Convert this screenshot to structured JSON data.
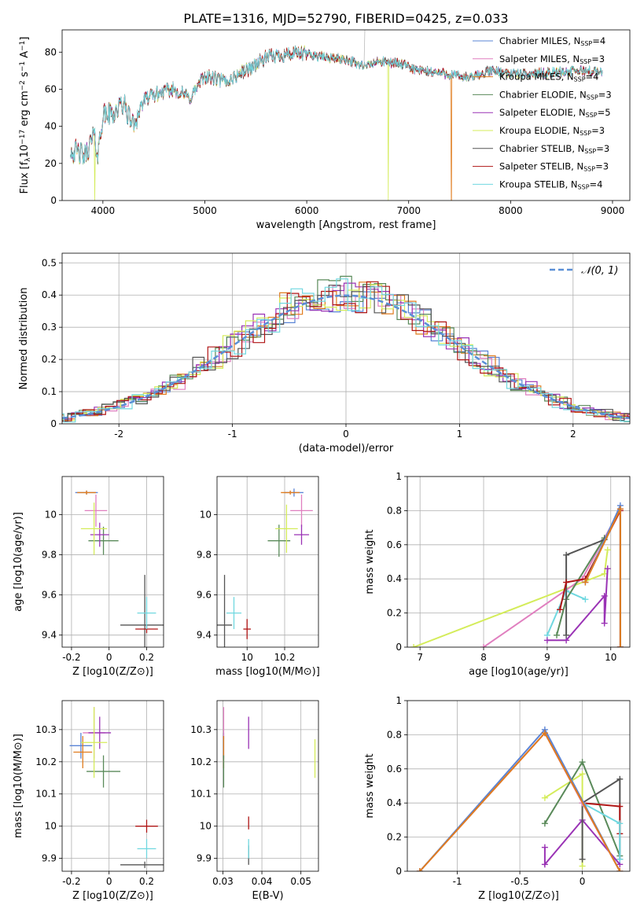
{
  "figure": {
    "title": "PLATE=1316, MJD=52790, FIBERID=0425, z=0.033"
  },
  "models": [
    {
      "name": "Chabrier MILES",
      "n_ssp": "4",
      "color": "#5a84d6"
    },
    {
      "name": "Salpeter MILES",
      "n_ssp": "3",
      "color": "#e07fbf"
    },
    {
      "name": "Kroupa MILES",
      "n_ssp": "4",
      "color": "#e07c1e"
    },
    {
      "name": "Chabrier ELODIE",
      "n_ssp": "3",
      "color": "#5a8a5a"
    },
    {
      "name": "Salpeter ELODIE",
      "n_ssp": "5",
      "color": "#9a33b5"
    },
    {
      "name": "Kroupa ELODIE",
      "n_ssp": "3",
      "color": "#d4ec5a"
    },
    {
      "name": "Chabrier STELIB",
      "n_ssp": "3",
      "color": "#555555"
    },
    {
      "name": "Salpeter STELIB",
      "n_ssp": "3",
      "color": "#b01515"
    },
    {
      "name": "Kroupa STELIB",
      "n_ssp": "4",
      "color": "#70d8e0"
    }
  ],
  "chart_data": [
    {
      "id": "spectrum",
      "type": "line",
      "xlabel": "wavelength [Angstrom, rest frame]",
      "ylabel": "Flux [f_λ 10^-17 erg cm^-2 s^-1 A^-1]",
      "xlim": [
        3600,
        9170
      ],
      "ylim": [
        0,
        92
      ],
      "xticks": [
        4000,
        5000,
        6000,
        7000,
        8000,
        9000
      ],
      "yticks": [
        0,
        20,
        40,
        60,
        80
      ],
      "legend": "top-right",
      "spectrum_profile": [
        [
          3680,
          31
        ],
        [
          3750,
          30
        ],
        [
          3820,
          28
        ],
        [
          3900,
          37
        ],
        [
          3950,
          25
        ],
        [
          4000,
          46
        ],
        [
          4100,
          47
        ],
        [
          4200,
          52
        ],
        [
          4300,
          41
        ],
        [
          4400,
          54
        ],
        [
          4500,
          57
        ],
        [
          4700,
          60
        ],
        [
          4850,
          55
        ],
        [
          5000,
          67
        ],
        [
          5200,
          64
        ],
        [
          5400,
          70
        ],
        [
          5600,
          77
        ],
        [
          5800,
          79
        ],
        [
          6000,
          79
        ],
        [
          6200,
          77
        ],
        [
          6400,
          76
        ],
        [
          6562,
          72
        ],
        [
          6700,
          75
        ],
        [
          6900,
          74
        ],
        [
          7100,
          70
        ],
        [
          7300,
          69
        ],
        [
          7600,
          66
        ],
        [
          7800,
          70
        ],
        [
          8100,
          68
        ],
        [
          8400,
          69
        ],
        [
          8700,
          70
        ],
        [
          8900,
          69
        ]
      ],
      "dropouts": [
        {
          "model": "Kroupa ELODIE",
          "wavelengths": [
            3920,
            6800
          ]
        },
        {
          "model": "Kroupa MILES",
          "wavelengths": [
            7420
          ]
        }
      ],
      "emission_spike": {
        "wavelength": 6562,
        "flux": 92
      }
    },
    {
      "id": "residuals",
      "type": "histogram",
      "xlabel": "(data-model)/error",
      "ylabel": "Normed distribution",
      "xlim": [
        -2.5,
        2.5
      ],
      "ylim": [
        0,
        0.53
      ],
      "xticks": [
        -2,
        -1,
        0,
        1,
        2
      ],
      "yticks": [
        0.0,
        0.1,
        0.2,
        0.3,
        0.4,
        0.5
      ],
      "bin_width": 0.1,
      "reference_curve": {
        "label": "𝒩(0, 1)",
        "mean": 0,
        "sigma": 1
      },
      "legend": "top-right"
    },
    {
      "id": "age_vs_Z",
      "type": "scatter",
      "xlabel": "Z [log10(Z/Z⊙)]",
      "ylabel": "age [log10(age/yr)]",
      "xlim": [
        -0.25,
        0.29
      ],
      "ylim": [
        9.34,
        10.19
      ],
      "xticks": [
        -0.2,
        0.0,
        0.2
      ],
      "yticks": [
        9.4,
        9.6,
        9.8,
        10.0
      ],
      "points": [
        {
          "model": "Chabrier MILES",
          "x": -0.12,
          "y": 10.11,
          "xerr": 0.06,
          "yerr": 0.01
        },
        {
          "model": "Salpeter MILES",
          "x": -0.07,
          "y": 10.02,
          "xerr": 0.06,
          "yerr": 0.08
        },
        {
          "model": "Kroupa MILES",
          "x": -0.12,
          "y": 10.11,
          "xerr": 0.05,
          "yerr": 0.01
        },
        {
          "model": "Chabrier ELODIE",
          "x": -0.03,
          "y": 9.87,
          "xerr": 0.08,
          "yerr": 0.07
        },
        {
          "model": "Salpeter ELODIE",
          "x": -0.05,
          "y": 9.9,
          "xerr": 0.05,
          "yerr": 0.06
        },
        {
          "model": "Kroupa ELODIE",
          "x": -0.08,
          "y": 9.93,
          "xerr": 0.07,
          "yerr": 0.13
        },
        {
          "model": "Chabrier STELIB",
          "x": 0.19,
          "y": 9.45,
          "xerr": 0.13,
          "yerr": 0.25
        },
        {
          "model": "Salpeter STELIB",
          "x": 0.2,
          "y": 9.43,
          "xerr": 0.06,
          "yerr": 0.02
        },
        {
          "model": "Kroupa STELIB",
          "x": 0.2,
          "y": 9.51,
          "xerr": 0.05,
          "yerr": 0.08
        }
      ]
    },
    {
      "id": "age_vs_mass",
      "type": "scatter",
      "xlabel": "mass [log10(M/M⊙)]",
      "ylabel": "",
      "xlim": [
        9.84,
        10.38
      ],
      "ylim": [
        9.34,
        10.19
      ],
      "xticks": [
        10.0,
        10.2
      ],
      "yticks": [
        9.4,
        9.6,
        9.8,
        10.0
      ],
      "points": [
        {
          "model": "Chabrier MILES",
          "x": 10.25,
          "y": 10.11,
          "xerr": 0.05,
          "yerr": 0.02
        },
        {
          "model": "Salpeter MILES",
          "x": 10.29,
          "y": 10.02,
          "xerr": 0.06,
          "yerr": 0.08
        },
        {
          "model": "Kroupa MILES",
          "x": 10.23,
          "y": 10.11,
          "xerr": 0.05,
          "yerr": 0.01
        },
        {
          "model": "Chabrier ELODIE",
          "x": 10.17,
          "y": 9.87,
          "xerr": 0.06,
          "yerr": 0.08
        },
        {
          "model": "Salpeter ELODIE",
          "x": 10.29,
          "y": 9.9,
          "xerr": 0.04,
          "yerr": 0.05
        },
        {
          "model": "Kroupa ELODIE",
          "x": 10.21,
          "y": 9.93,
          "xerr": 0.06,
          "yerr": 0.12
        },
        {
          "model": "Chabrier STELIB",
          "x": 9.88,
          "y": 9.45,
          "xerr": 0.04,
          "yerr": 0.25
        },
        {
          "model": "Salpeter STELIB",
          "x": 10.0,
          "y": 9.43,
          "xerr": 0.02,
          "yerr": 0.05
        },
        {
          "model": "Kroupa STELIB",
          "x": 9.93,
          "y": 9.51,
          "xerr": 0.04,
          "yerr": 0.08
        }
      ]
    },
    {
      "id": "mass_weight_vs_age",
      "type": "line",
      "xlabel": "age [log10(age/yr)]",
      "ylabel": "mass weight",
      "xlim": [
        6.8,
        10.3
      ],
      "ylim": [
        0.0,
        1.0
      ],
      "xticks": [
        7,
        8,
        9,
        10
      ],
      "yticks": [
        0.0,
        0.2,
        0.4,
        0.6,
        0.8,
        1.0
      ],
      "series": [
        {
          "model": "Kroupa ELODIE",
          "x": [
            6.9,
            9.9,
            9.95
          ],
          "y": [
            0.0,
            0.43,
            0.57
          ]
        },
        {
          "model": "Salpeter MILES",
          "x": [
            8.0,
            9.55,
            10.15,
            10.15
          ],
          "y": [
            0.0,
            0.4,
            0.81,
            0.0
          ]
        },
        {
          "model": "Kroupa STELIB",
          "x": [
            9.0,
            9.3,
            9.6
          ],
          "y": [
            0.07,
            0.33,
            0.28
          ]
        },
        {
          "model": "Salpeter ELODIE",
          "x": [
            9.0,
            9.3,
            9.9,
            9.9,
            9.95
          ],
          "y": [
            0.04,
            0.04,
            0.3,
            0.14,
            0.46
          ]
        },
        {
          "model": "Chabrier ELODIE",
          "x": [
            9.15,
            9.3,
            9.9
          ],
          "y": [
            0.07,
            0.28,
            0.64
          ]
        },
        {
          "model": "Chabrier STELIB",
          "x": [
            9.3,
            9.3,
            9.9
          ],
          "y": [
            0.07,
            0.54,
            0.63
          ]
        },
        {
          "model": "Salpeter STELIB",
          "x": [
            9.2,
            9.3,
            9.6,
            10.15,
            10.15
          ],
          "y": [
            0.22,
            0.38,
            0.4,
            0.8,
            0.0
          ]
        },
        {
          "model": "Chabrier MILES",
          "x": [
            9.6,
            10.15,
            10.15
          ],
          "y": [
            0.38,
            0.83,
            0.0
          ]
        },
        {
          "model": "Kroupa MILES",
          "x": [
            9.6,
            10.15,
            10.15
          ],
          "y": [
            0.38,
            0.81,
            0.0
          ]
        }
      ]
    },
    {
      "id": "mass_vs_Z",
      "type": "scatter",
      "xlabel": "Z [log10(Z/Z⊙)]",
      "ylabel": "mass [log10(M/M⊙)]",
      "xlim": [
        -0.25,
        0.29
      ],
      "ylim": [
        9.86,
        10.39
      ],
      "xticks": [
        -0.2,
        0.0,
        0.2
      ],
      "yticks": [
        9.9,
        10.0,
        10.1,
        10.2,
        10.3
      ],
      "points": [
        {
          "model": "Chabrier MILES",
          "x": -0.15,
          "y": 10.25,
          "xerr": 0.06,
          "yerr": 0.04
        },
        {
          "model": "Salpeter MILES",
          "x": -0.08,
          "y": 10.29,
          "xerr": 0.06,
          "yerr": 0.08
        },
        {
          "model": "Kroupa MILES",
          "x": -0.14,
          "y": 10.23,
          "xerr": 0.05,
          "yerr": 0.05
        },
        {
          "model": "Chabrier ELODIE",
          "x": -0.03,
          "y": 10.17,
          "xerr": 0.09,
          "yerr": 0.05
        },
        {
          "model": "Salpeter ELODIE",
          "x": -0.05,
          "y": 10.29,
          "xerr": 0.06,
          "yerr": 0.05
        },
        {
          "model": "Kroupa ELODIE",
          "x": -0.08,
          "y": 10.26,
          "xerr": 0.07,
          "yerr": 0.11
        },
        {
          "model": "Chabrier STELIB",
          "x": 0.19,
          "y": 9.88,
          "xerr": 0.13,
          "yerr": 0.01
        },
        {
          "model": "Salpeter STELIB",
          "x": 0.2,
          "y": 10.0,
          "xerr": 0.06,
          "yerr": 0.02
        },
        {
          "model": "Kroupa STELIB",
          "x": 0.2,
          "y": 9.93,
          "xerr": 0.05,
          "yerr": 0.03
        }
      ]
    },
    {
      "id": "mass_vs_EBV",
      "type": "scatter",
      "xlabel": "E(B-V)",
      "ylabel": "",
      "xlim": [
        0.0285,
        0.0545
      ],
      "ylim": [
        9.86,
        10.39
      ],
      "xticks": [
        0.03,
        0.04,
        0.05
      ],
      "yticks": [
        9.9,
        10.0,
        10.1,
        10.2,
        10.3
      ],
      "points": [
        {
          "model": "Chabrier MILES",
          "x": 0.0302,
          "y": 10.25,
          "xerr": 0,
          "yerr": 0.04
        },
        {
          "model": "Salpeter MILES",
          "x": 0.0302,
          "y": 10.32,
          "xerr": 0,
          "yerr": 0.05
        },
        {
          "model": "Kroupa MILES",
          "x": 0.0302,
          "y": 10.23,
          "xerr": 0,
          "yerr": 0.05
        },
        {
          "model": "Chabrier ELODIE",
          "x": 0.0302,
          "y": 10.17,
          "xerr": 0,
          "yerr": 0.05
        },
        {
          "model": "Salpeter ELODIE",
          "x": 0.0366,
          "y": 10.29,
          "xerr": 0,
          "yerr": 0.05
        },
        {
          "model": "Kroupa ELODIE",
          "x": 0.0536,
          "y": 10.21,
          "xerr": 0,
          "yerr": 0.06
        },
        {
          "model": "Chabrier STELIB",
          "x": 0.0366,
          "y": 9.91,
          "xerr": 0,
          "yerr": 0.03
        },
        {
          "model": "Salpeter STELIB",
          "x": 0.0366,
          "y": 10.01,
          "xerr": 0,
          "yerr": 0.02
        },
        {
          "model": "Kroupa STELIB",
          "x": 0.0366,
          "y": 9.93,
          "xerr": 0,
          "yerr": 0.03
        }
      ]
    },
    {
      "id": "mass_weight_vs_Z",
      "type": "line",
      "xlabel": "Z [log10(Z/Z⊙)]",
      "ylabel": "mass weight",
      "xlim": [
        -1.4,
        0.38
      ],
      "ylim": [
        0.0,
        1.0
      ],
      "xticks": [
        -1.0,
        -0.5,
        0.0
      ],
      "yticks": [
        0.0,
        0.2,
        0.4,
        0.6,
        0.8,
        1.0
      ],
      "series": [
        {
          "model": "Kroupa ELODIE",
          "x": [
            -0.3,
            0.0,
            0.0
          ],
          "y": [
            0.43,
            0.57,
            0.03
          ]
        },
        {
          "model": "Chabrier ELODIE",
          "x": [
            -0.3,
            0.0,
            0.3
          ],
          "y": [
            0.28,
            0.64,
            0.09
          ]
        },
        {
          "model": "Salpeter ELODIE",
          "x": [
            -0.3,
            -0.3,
            0.0,
            0.3
          ],
          "y": [
            0.14,
            0.04,
            0.3,
            0.04
          ]
        },
        {
          "model": "Chabrier STELIB",
          "x": [
            0.0,
            0.0,
            0.3,
            0.3
          ],
          "y": [
            0.07,
            0.4,
            0.54,
            0.07
          ]
        },
        {
          "model": "Salpeter STELIB",
          "x": [
            0.0,
            0.3,
            0.3
          ],
          "y": [
            0.4,
            0.38,
            0.22
          ]
        },
        {
          "model": "Kroupa STELIB",
          "x": [
            0.0,
            0.3,
            0.3
          ],
          "y": [
            0.4,
            0.28,
            0.07
          ]
        },
        {
          "model": "Salpeter MILES",
          "x": [
            -1.3,
            -0.3,
            0.0,
            0.3
          ],
          "y": [
            0.0,
            0.81,
            0.4,
            0.0
          ]
        },
        {
          "model": "Chabrier MILES",
          "x": [
            -1.3,
            -0.3,
            0.3
          ],
          "y": [
            0.0,
            0.83,
            0.0
          ]
        },
        {
          "model": "Kroupa MILES",
          "x": [
            -1.3,
            -0.3,
            0.3
          ],
          "y": [
            0.0,
            0.81,
            0.0
          ]
        }
      ]
    }
  ]
}
